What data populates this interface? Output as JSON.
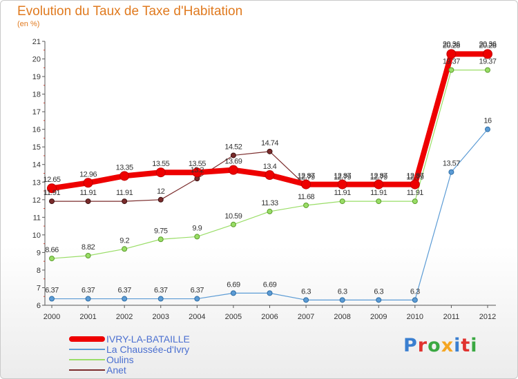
{
  "chart_data": {
    "type": "line",
    "title": "Evolution du Taux de Taxe d'Habitation",
    "subtitle": "(en %)",
    "x": [
      "2000",
      "2001",
      "2002",
      "2003",
      "2004",
      "2005",
      "2006",
      "2007",
      "2008",
      "2009",
      "2010",
      "2011",
      "2012"
    ],
    "ylim": [
      6,
      21
    ],
    "yticks": [
      "6",
      "7",
      "8",
      "9",
      "10",
      "11",
      "12",
      "13",
      "14",
      "15",
      "16",
      "17",
      "18",
      "19",
      "20",
      "21"
    ],
    "grid": false,
    "legend_position": "bottom-left",
    "series": [
      {
        "name": "IVRY-LA-BATAILLE",
        "color": "#ee0000",
        "values": [
          12.65,
          12.96,
          13.35,
          13.55,
          13.55,
          13.69,
          13.4,
          12.87,
          12.87,
          12.87,
          12.87,
          20.28,
          20.28
        ],
        "labels": [
          "12.65",
          "12.96",
          "13.35",
          "13.55",
          "13.55",
          "13.69",
          "13.4",
          "12.87",
          "12.87",
          "12.87",
          "12.87",
          "20.28",
          "20.28"
        ]
      },
      {
        "name": "La Chaussée-d'Ivry",
        "color": "#5b9bd5",
        "values": [
          6.37,
          6.37,
          6.37,
          6.37,
          6.37,
          6.69,
          6.69,
          6.3,
          6.3,
          6.3,
          6.3,
          13.57,
          16
        ],
        "labels": [
          "6.37",
          "6.37",
          "6.37",
          "6.37",
          "6.37",
          "6.69",
          "6.69",
          "6.3",
          "6.3",
          "6.3",
          "6.3",
          "13.57",
          "16"
        ]
      },
      {
        "name": "Oulins",
        "color": "#99dd66",
        "values": [
          8.66,
          8.82,
          9.2,
          9.75,
          9.9,
          10.59,
          11.33,
          11.68,
          11.91,
          11.91,
          11.91,
          19.37,
          19.37
        ],
        "labels": [
          "8.66",
          "8.82",
          "9.2",
          "9.75",
          "9.9",
          "10.59",
          "11.33",
          "11.68",
          "11.91",
          "11.91",
          "11.91",
          "19.37",
          "19.37"
        ]
      },
      {
        "name": "Anet",
        "color": "#7a2b2b",
        "values": [
          11.91,
          11.91,
          11.91,
          12,
          13.2,
          14.52,
          14.74,
          12.79,
          12.79,
          12.79,
          12.79,
          20.36,
          20.36
        ],
        "labels": [
          "11.91",
          "11.91",
          "11.91",
          "12",
          "13.2",
          "14.52",
          "14.74",
          "12.79",
          "12.79",
          "12.79",
          "12.79",
          "20.36",
          "20.36"
        ]
      }
    ]
  },
  "logo": {
    "text": "Proxiti",
    "letter_colors": [
      "#3a7fd0",
      "#e0332f",
      "#3aa842",
      "#f5a623",
      "#3a7fd0",
      "#e0332f",
      "#3aa842"
    ]
  }
}
